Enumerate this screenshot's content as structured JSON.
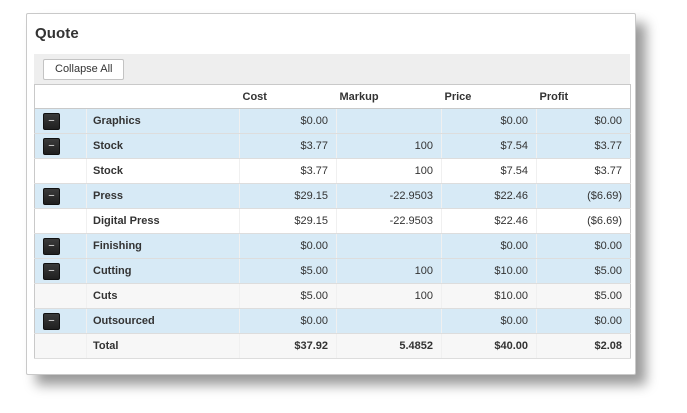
{
  "page": {
    "title": "Quote"
  },
  "toolbar": {
    "collapse_all_label": "Collapse All"
  },
  "table": {
    "expander_glyph": "−",
    "columns": {
      "cost": "Cost",
      "markup": "Markup",
      "price": "Price",
      "profit": "Profit"
    },
    "rows": [
      {
        "label": "Graphics",
        "type": "parent",
        "cost": "$0.00",
        "markup": "",
        "price": "$0.00",
        "profit": "$0.00"
      },
      {
        "label": "Stock",
        "type": "parent",
        "cost": "$3.77",
        "markup": "100",
        "price": "$7.54",
        "profit": "$3.77"
      },
      {
        "label": "Stock",
        "type": "child",
        "cost": "$3.77",
        "markup": "100",
        "price": "$7.54",
        "profit": "$3.77"
      },
      {
        "label": "Press",
        "type": "parent",
        "cost": "$29.15",
        "markup": "-22.9503",
        "price": "$22.46",
        "profit": "($6.69)"
      },
      {
        "label": "Digital Press",
        "type": "child",
        "cost": "$29.15",
        "markup": "-22.9503",
        "price": "$22.46",
        "profit": "($6.69)"
      },
      {
        "label": "Finishing",
        "type": "parent",
        "cost": "$0.00",
        "markup": "",
        "price": "$0.00",
        "profit": "$0.00"
      },
      {
        "label": "Cutting",
        "type": "parent",
        "cost": "$5.00",
        "markup": "100",
        "price": "$10.00",
        "profit": "$5.00"
      },
      {
        "label": "Cuts",
        "type": "child",
        "cost": "$5.00",
        "markup": "100",
        "price": "$10.00",
        "profit": "$5.00"
      },
      {
        "label": "Outsourced",
        "type": "parent",
        "cost": "$0.00",
        "markup": "",
        "price": "$0.00",
        "profit": "$0.00"
      }
    ],
    "total_row": {
      "label": "Total",
      "cost": "$37.92",
      "markup": "5.4852",
      "price": "$40.00",
      "profit": "$2.08"
    }
  },
  "colors": {
    "highlight_row": "#d7eaf6",
    "toolbar_bg": "#eeeeee",
    "table_border": "#c9c9c9",
    "expander_bg": "#2a2a2a"
  }
}
